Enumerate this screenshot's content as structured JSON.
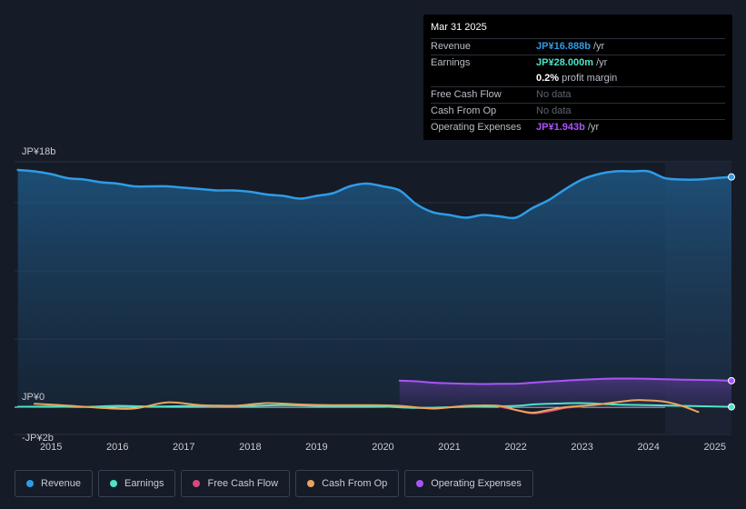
{
  "tooltip": {
    "date": "Mar 31 2025",
    "rows": [
      {
        "label": "Revenue",
        "value": "JP¥16.888b",
        "unit": "/yr",
        "color": "#2f9be6"
      },
      {
        "label": "Earnings",
        "value": "JP¥28.000m",
        "unit": "/yr",
        "color": "#4ee3c6"
      },
      {
        "label": "",
        "value": "0.2%",
        "unit": "profit margin",
        "color": "#ffffff"
      },
      {
        "label": "Free Cash Flow",
        "value": "No data",
        "unit": "",
        "color": "#5d6370"
      },
      {
        "label": "Cash From Op",
        "value": "No data",
        "unit": "",
        "color": "#5d6370"
      },
      {
        "label": "Operating Expenses",
        "value": "JP¥1.943b",
        "unit": "/yr",
        "color": "#a855f7"
      }
    ]
  },
  "legend": [
    {
      "label": "Revenue",
      "color": "#2f9be6"
    },
    {
      "label": "Earnings",
      "color": "#4ee3c6"
    },
    {
      "label": "Free Cash Flow",
      "color": "#d9477c"
    },
    {
      "label": "Cash From Op",
      "color": "#e8a55a"
    },
    {
      "label": "Operating Expenses",
      "color": "#a855f7"
    }
  ],
  "chart_data": {
    "type": "line",
    "title": "",
    "xlabel": "",
    "ylabel": "",
    "y_tick_labels": [
      "JP¥18b",
      "JP¥0",
      "-JP¥2b"
    ],
    "x_tick_labels": [
      "2015",
      "2016",
      "2017",
      "2018",
      "2019",
      "2020",
      "2021",
      "2022",
      "2023",
      "2024",
      "2025"
    ],
    "ylim": [
      -2,
      18
    ],
    "xlim": [
      2014.45,
      2025.25
    ],
    "forecast_start": 2024.25,
    "series": [
      {
        "name": "Revenue",
        "color": "#2f9be6",
        "x": [
          2014.5,
          2014.75,
          2015.0,
          2015.25,
          2015.5,
          2015.75,
          2016.0,
          2016.25,
          2016.5,
          2016.75,
          2017.0,
          2017.25,
          2017.5,
          2017.75,
          2018.0,
          2018.25,
          2018.5,
          2018.75,
          2019.0,
          2019.25,
          2019.5,
          2019.75,
          2020.0,
          2020.25,
          2020.5,
          2020.75,
          2021.0,
          2021.25,
          2021.5,
          2021.75,
          2022.0,
          2022.25,
          2022.5,
          2022.75,
          2023.0,
          2023.25,
          2023.5,
          2023.75,
          2024.0,
          2024.25,
          2024.5,
          2024.75,
          2025.0,
          2025.25
        ],
        "values": [
          17.4,
          17.3,
          17.1,
          16.8,
          16.7,
          16.5,
          16.4,
          16.2,
          16.2,
          16.2,
          16.1,
          16.0,
          15.9,
          15.9,
          15.8,
          15.6,
          15.5,
          15.3,
          15.5,
          15.7,
          16.2,
          16.4,
          16.2,
          15.9,
          14.9,
          14.3,
          14.1,
          13.9,
          14.1,
          14.0,
          13.9,
          14.6,
          15.2,
          16.0,
          16.7,
          17.1,
          17.3,
          17.3,
          17.3,
          16.8,
          16.7,
          16.7,
          16.8,
          16.888
        ]
      },
      {
        "name": "Earnings",
        "color": "#4ee3c6",
        "x": [
          2014.5,
          2015.0,
          2015.5,
          2016.0,
          2016.5,
          2017.0,
          2017.5,
          2018.0,
          2018.5,
          2019.0,
          2019.5,
          2020.0,
          2020.5,
          2021.0,
          2021.5,
          2022.0,
          2022.25,
          2022.5,
          2023.0,
          2023.5,
          2024.0,
          2024.5,
          2025.0,
          2025.25
        ],
        "values": [
          0.03,
          0.05,
          0.02,
          0.1,
          0.05,
          0.08,
          0.12,
          0.1,
          0.15,
          0.1,
          0.08,
          0.05,
          -0.05,
          0.0,
          0.05,
          0.1,
          0.2,
          0.25,
          0.3,
          0.2,
          0.15,
          0.1,
          0.05,
          0.028
        ]
      },
      {
        "name": "Cash From Op",
        "color": "#e8a55a",
        "x": [
          2014.75,
          2015.25,
          2015.75,
          2016.25,
          2016.75,
          2017.25,
          2017.75,
          2018.25,
          2018.75,
          2019.25,
          2019.75,
          2020.25,
          2020.75,
          2021.25,
          2021.75,
          2022.0,
          2022.25,
          2022.5,
          2022.75,
          2023.0,
          2023.25,
          2023.75,
          2024.0,
          2024.25,
          2024.5,
          2024.75
        ],
        "values": [
          0.25,
          0.12,
          -0.05,
          -0.1,
          0.35,
          0.15,
          0.1,
          0.3,
          0.2,
          0.15,
          0.15,
          0.1,
          -0.1,
          0.1,
          0.1,
          -0.2,
          -0.4,
          -0.2,
          0.0,
          0.1,
          0.2,
          0.5,
          0.5,
          0.4,
          0.1,
          -0.35
        ]
      },
      {
        "name": "Free Cash Flow",
        "color": "#d9477c",
        "x": [
          2021.75,
          2022.0,
          2022.25,
          2022.5,
          2022.75,
          2023.0
        ],
        "values": [
          0.05,
          -0.2,
          -0.45,
          -0.3,
          -0.05,
          0.05
        ]
      },
      {
        "name": "Operating Expenses",
        "color": "#a855f7",
        "x": [
          2020.25,
          2020.5,
          2020.75,
          2021.0,
          2021.25,
          2021.5,
          2021.75,
          2022.0,
          2022.25,
          2022.5,
          2022.75,
          2023.0,
          2023.25,
          2023.5,
          2023.75,
          2024.0,
          2024.25,
          2024.5,
          2024.75,
          2025.0,
          2025.25
        ],
        "values": [
          1.95,
          1.9,
          1.8,
          1.75,
          1.72,
          1.7,
          1.72,
          1.72,
          1.8,
          1.88,
          1.95,
          2.02,
          2.07,
          2.1,
          2.1,
          2.08,
          2.05,
          2.02,
          2.0,
          1.98,
          1.943
        ]
      }
    ]
  }
}
